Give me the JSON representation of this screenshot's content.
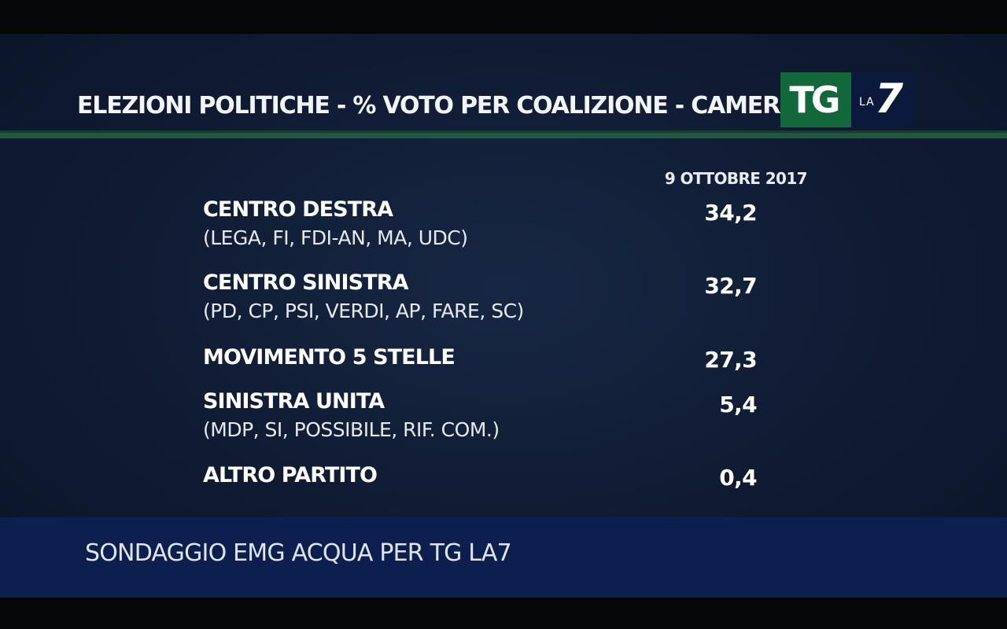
{
  "title": "ELEZIONI POLITICHE - % VOTO PER COALIZIONE - CAMERA",
  "logo": {
    "tg": "TG",
    "la": "LA",
    "seven": "7"
  },
  "colors": {
    "background": "#101b33",
    "accent_green": "#1f5a3c",
    "logo_green": "#12683a",
    "footer_blue": "#0d1f4f"
  },
  "chart_data": {
    "type": "table",
    "title": "ELEZIONI POLITICHE - % VOTO PER COALIZIONE - CAMERA",
    "columns": [
      "9 OTTOBRE 2017"
    ],
    "rows": [
      {
        "name": "CENTRO DESTRA",
        "detail": "(LEGA, FI, FDI-AN, MA, UDC)",
        "value": "34,2"
      },
      {
        "name": "CENTRO SINISTRA",
        "detail": "(PD, CP, PSI, VERDI, AP, FARE, SC)",
        "value": "32,7"
      },
      {
        "name": "MOVIMENTO 5 STELLE",
        "detail": "",
        "value": "27,3"
      },
      {
        "name": "SINISTRA UNITA",
        "detail": "(MDP, SI, POSSIBILE, RIF. COM.)",
        "value": "5,4"
      },
      {
        "name": "ALTRO PARTITO",
        "detail": "",
        "value": "0,4"
      }
    ]
  },
  "source": "SONDAGGIO EMG ACQUA PER TG LA7"
}
